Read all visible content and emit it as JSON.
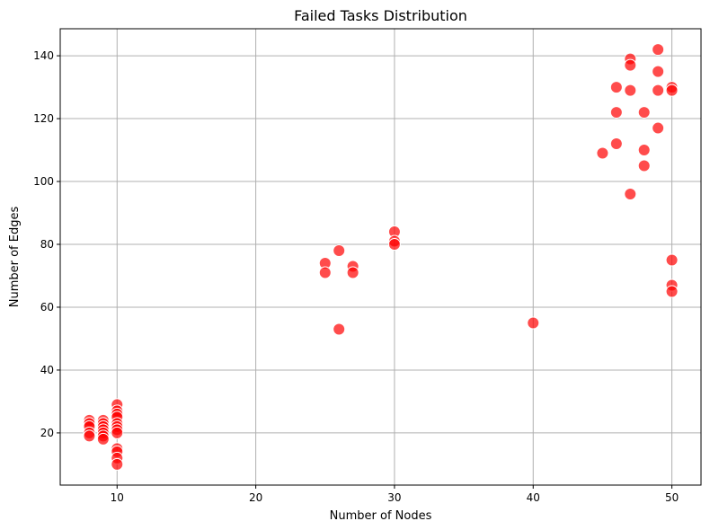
{
  "chart_data": {
    "type": "scatter",
    "title": "Failed Tasks Distribution",
    "xlabel": "Number of Nodes",
    "ylabel": "Number of Edges",
    "xlim": [
      5.9,
      52.1
    ],
    "ylim": [
      3.4,
      148.6
    ],
    "xticks": [
      10,
      20,
      30,
      40,
      50
    ],
    "yticks": [
      20,
      40,
      60,
      80,
      100,
      120,
      140
    ],
    "grid": true,
    "marker_color": "#ff0000",
    "marker_alpha": 0.7,
    "series": [
      {
        "points": [
          [
            8,
            24
          ],
          [
            8,
            23
          ],
          [
            8,
            22
          ],
          [
            8,
            20
          ],
          [
            8,
            19
          ],
          [
            9,
            24
          ],
          [
            9,
            23
          ],
          [
            9,
            22
          ],
          [
            9,
            21
          ],
          [
            9,
            20
          ],
          [
            9,
            19
          ],
          [
            9,
            18
          ],
          [
            10,
            29
          ],
          [
            10,
            27
          ],
          [
            10,
            26
          ],
          [
            10,
            25
          ],
          [
            10,
            23
          ],
          [
            10,
            22
          ],
          [
            10,
            21
          ],
          [
            10,
            20
          ],
          [
            10,
            15
          ],
          [
            10,
            14
          ],
          [
            10,
            12
          ],
          [
            10,
            10
          ],
          [
            25,
            74
          ],
          [
            25,
            71
          ],
          [
            26,
            78
          ],
          [
            26,
            53
          ],
          [
            27,
            73
          ],
          [
            27,
            71
          ],
          [
            30,
            84
          ],
          [
            30,
            81
          ],
          [
            30,
            80
          ],
          [
            40,
            55
          ],
          [
            45,
            109
          ],
          [
            46,
            130
          ],
          [
            46,
            122
          ],
          [
            46,
            112
          ],
          [
            47,
            139
          ],
          [
            47,
            137
          ],
          [
            47,
            129
          ],
          [
            47,
            96
          ],
          [
            48,
            122
          ],
          [
            48,
            110
          ],
          [
            48,
            105
          ],
          [
            49,
            142
          ],
          [
            49,
            135
          ],
          [
            49,
            129
          ],
          [
            49,
            117
          ],
          [
            50,
            130
          ],
          [
            50,
            129
          ],
          [
            50,
            75
          ],
          [
            50,
            67
          ],
          [
            50,
            65
          ]
        ]
      }
    ]
  }
}
